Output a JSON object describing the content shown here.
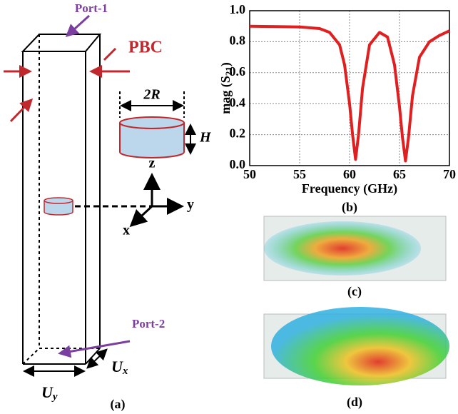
{
  "panel_a": {
    "label": "(a)",
    "port1": "Port-1",
    "port2": "Port-2",
    "pbc": "PBC",
    "radius": "2R",
    "height": "H",
    "axis_z": "z",
    "axis_y": "y",
    "axis_x": "x",
    "uy": [
      "U",
      "y"
    ],
    "ux": [
      "U",
      "x"
    ]
  },
  "chart_data": {
    "type": "line",
    "label": "(b)",
    "xlabel": "Frequency (GHz)",
    "ylabel": [
      "mag (S",
      "21",
      ")"
    ],
    "color": "#e02020",
    "grid": true,
    "x": [
      50,
      52,
      55,
      57,
      58,
      59,
      59.5,
      60,
      60.3,
      60.6,
      60.9,
      61.3,
      62,
      63,
      63.8,
      64.5,
      65,
      65.3,
      65.6,
      65.9,
      66.3,
      67,
      68,
      69,
      70
    ],
    "values": [
      0.9,
      0.898,
      0.895,
      0.885,
      0.86,
      0.78,
      0.65,
      0.4,
      0.2,
      0.04,
      0.2,
      0.5,
      0.78,
      0.86,
      0.83,
      0.65,
      0.38,
      0.18,
      0.03,
      0.18,
      0.45,
      0.7,
      0.8,
      0.84,
      0.87
    ],
    "xlim": [
      50,
      70
    ],
    "xticks": [
      50,
      55,
      60,
      65,
      70
    ],
    "ylim": [
      0,
      1
    ],
    "yticks": [
      {
        "value": 0,
        "label": "0.0"
      },
      0.2,
      0.4,
      0.6,
      0.8,
      {
        "value": 1,
        "label": "1.0"
      }
    ]
  },
  "panel_c": {
    "label": "(c)"
  },
  "panel_d": {
    "label": "(d)"
  }
}
